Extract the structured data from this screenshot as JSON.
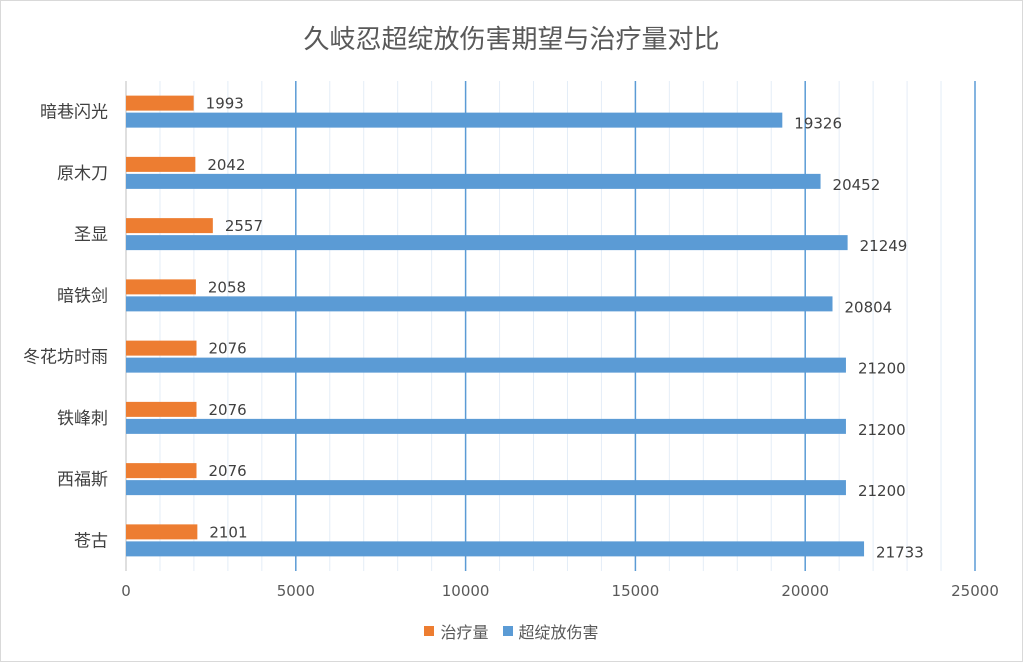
{
  "chart_data": {
    "type": "bar",
    "orientation": "horizontal",
    "title": "久岐忍超绽放伤害期望与治疗量对比",
    "categories": [
      "暗巷闪光",
      "原木刀",
      "圣显",
      "暗铁剑",
      "冬花坊时雨",
      "铁峰刺",
      "西福斯",
      "苍古"
    ],
    "series": [
      {
        "name": "治疗量",
        "color": "#ed7d31",
        "values": [
          1993,
          2042,
          2557,
          2058,
          2076,
          2076,
          2076,
          2101
        ]
      },
      {
        "name": "超绽放伤害",
        "color": "#5b9bd5",
        "values": [
          19326,
          20452,
          21249,
          20804,
          21200,
          21200,
          21200,
          21733
        ]
      }
    ],
    "xlim": [
      0,
      25000
    ],
    "xticks": [
      "0",
      "5000",
      "10000",
      "15000",
      "20000",
      "25000"
    ],
    "xtick_values": [
      0,
      5000,
      10000,
      15000,
      20000,
      25000
    ],
    "grid": "vertical",
    "legend_position": "bottom"
  }
}
